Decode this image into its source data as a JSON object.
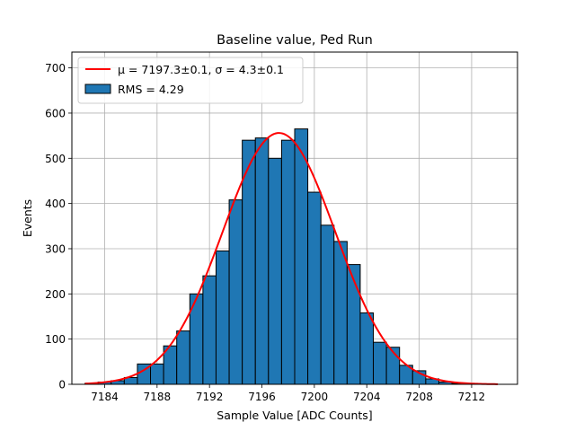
{
  "chart_data": {
    "type": "bar",
    "title": "Baseline value, Ped Run",
    "xlabel": "Sample Value [ADC Counts]",
    "ylabel": "Events",
    "xlim": [
      7181.5,
      7215.5
    ],
    "ylim": [
      0,
      735
    ],
    "xticks": [
      7184,
      7188,
      7192,
      7196,
      7200,
      7204,
      7208,
      7212
    ],
    "yticks": [
      0,
      100,
      200,
      300,
      400,
      500,
      600,
      700
    ],
    "grid": true,
    "legend_position": "top-left",
    "bin_width": 1,
    "series": [
      {
        "name": "RMS = 4.29",
        "kind": "histogram",
        "color": "#1f77b4",
        "bin_centers": [
          7183,
          7184,
          7185,
          7186,
          7187,
          7188,
          7189,
          7190,
          7191,
          7192,
          7193,
          7194,
          7195,
          7196,
          7197,
          7198,
          7199,
          7200,
          7201,
          7202,
          7203,
          7204,
          7205,
          7206,
          7207,
          7208,
          7209,
          7210,
          7211,
          7212,
          7213
        ],
        "values": [
          2,
          5,
          8,
          15,
          45,
          45,
          85,
          118,
          200,
          240,
          295,
          408,
          540,
          545,
          500,
          540,
          565,
          425,
          352,
          316,
          265,
          158,
          93,
          82,
          42,
          30,
          12,
          5,
          2,
          1,
          0
        ]
      },
      {
        "name": "$\\mu = 7197.3\\pm0.1$, $\\sigma = 4.3\\pm0.1$",
        "display_name": "μ = 7197.3±0.1, σ = 4.3±0.1",
        "kind": "gaussian_fit",
        "color": "#ff0000",
        "mu": 7197.3,
        "sigma": 4.3,
        "amplitude": 556,
        "x_range": [
          7182.5,
          7214
        ]
      }
    ]
  }
}
